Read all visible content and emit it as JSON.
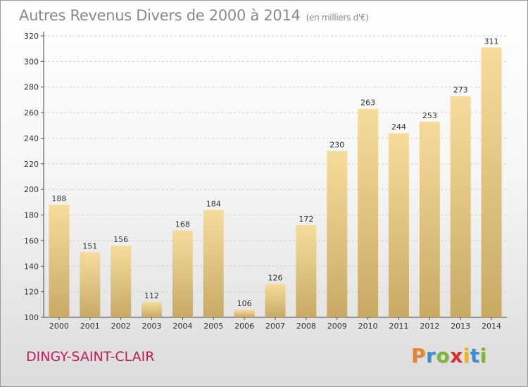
{
  "header": {
    "title": "Autres Revenus Divers de 2000 à 2014",
    "unit": "(en milliers d'€)"
  },
  "footer": {
    "location": "DINGY-SAINT-CLAIR",
    "brand_letters": [
      "P",
      "r",
      "o",
      "x",
      "i",
      "t",
      "i"
    ],
    "brand_colors": [
      "#e8832a",
      "#3a8fd0",
      "#7db63a",
      "#d6332f",
      "#f0b429",
      "#3a8fd0",
      "#7db63a"
    ]
  },
  "colors": {
    "bar_light": "#f6dc9c",
    "bar_dark": "#c8aa65",
    "grid": "#cfcfcf",
    "axis_text": "#333333"
  },
  "chart_data": {
    "type": "bar",
    "categories": [
      "2000",
      "2001",
      "2002",
      "2003",
      "2004",
      "2005",
      "2006",
      "2007",
      "2008",
      "2009",
      "2010",
      "2011",
      "2012",
      "2013",
      "2014"
    ],
    "values": [
      188,
      151,
      156,
      112,
      168,
      184,
      106,
      126,
      172,
      230,
      263,
      244,
      253,
      273,
      311
    ],
    "data_labels": [
      "188",
      "151",
      "156",
      "112",
      "168",
      "184",
      "106",
      "126",
      "172",
      "230",
      "263",
      "244",
      "253",
      "273",
      "311"
    ],
    "yticks": [
      "100",
      "120",
      "140",
      "160",
      "180",
      "200",
      "220",
      "240",
      "260",
      "280",
      "300",
      "320"
    ],
    "ylim": [
      100,
      320
    ],
    "grid": true
  }
}
